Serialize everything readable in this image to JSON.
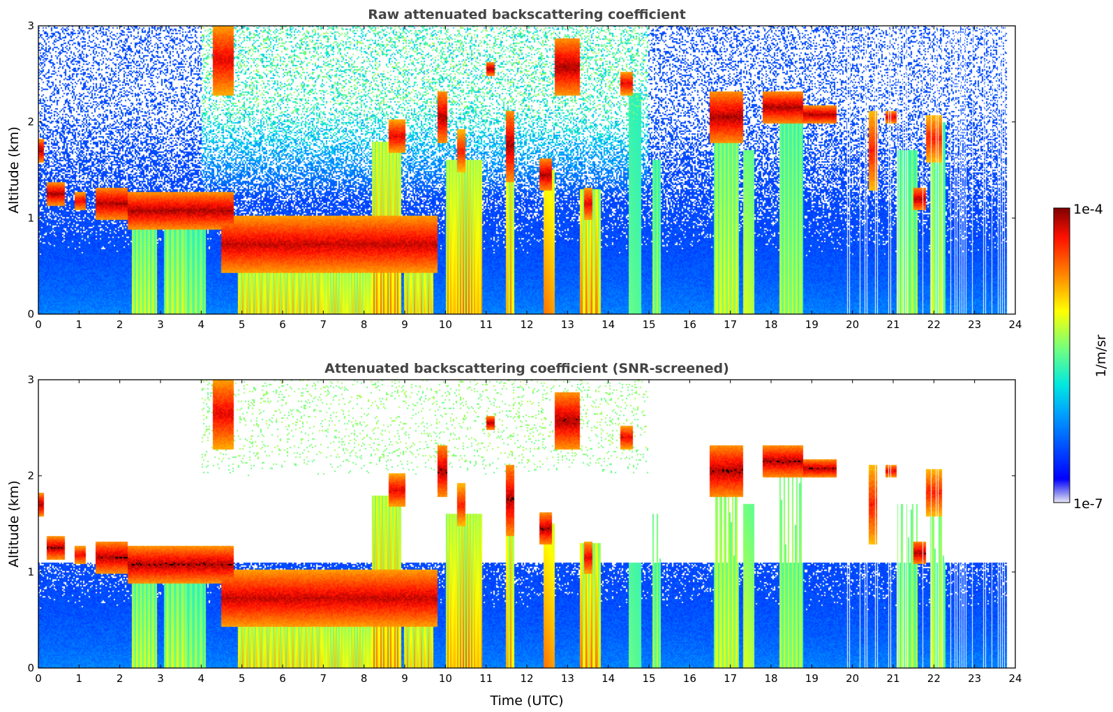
{
  "chart_data": [
    {
      "type": "heatmap",
      "title": "Raw attenuated backscattering coefficient",
      "xlabel": "",
      "ylabel": "Altitude (km)",
      "xlim": [
        0,
        24
      ],
      "ylim": [
        0,
        3
      ],
      "xticks": [
        "0",
        "1",
        "2",
        "3",
        "4",
        "5",
        "6",
        "7",
        "8",
        "9",
        "10",
        "11",
        "12",
        "13",
        "14",
        "15",
        "16",
        "17",
        "18",
        "19",
        "20",
        "21",
        "22",
        "23",
        "24"
      ],
      "yticks": [
        "0",
        "1",
        "2",
        "3"
      ],
      "screened": false
    },
    {
      "type": "heatmap",
      "title": "Attenuated backscattering coefficient (SNR-screened)",
      "xlabel": "Time (UTC)",
      "ylabel": "Altitude (km)",
      "xlim": [
        0,
        24
      ],
      "ylim": [
        0,
        3
      ],
      "xticks": [
        "0",
        "1",
        "2",
        "3",
        "4",
        "5",
        "6",
        "7",
        "8",
        "9",
        "10",
        "11",
        "12",
        "13",
        "14",
        "15",
        "16",
        "17",
        "18",
        "19",
        "20",
        "21",
        "22",
        "23",
        "24"
      ],
      "yticks": [
        "0",
        "1",
        "2",
        "3"
      ],
      "screened": true
    }
  ],
  "colorbar": {
    "label": "1/m/sr",
    "max_label": "1e-4",
    "min_label": "1e-7",
    "colormap": "jet",
    "scale": "log"
  },
  "cloud_features": [
    {
      "start": 0.0,
      "end": 0.15,
      "base": 1.6,
      "top": 1.8,
      "strength": 1.0
    },
    {
      "start": 0.2,
      "end": 0.65,
      "base": 1.15,
      "top": 1.35,
      "strength": 1.0
    },
    {
      "start": 0.9,
      "end": 1.15,
      "base": 1.1,
      "top": 1.25,
      "strength": 0.9
    },
    {
      "start": 1.4,
      "end": 2.2,
      "base": 1.0,
      "top": 1.3,
      "strength": 1.0
    },
    {
      "start": 2.2,
      "end": 4.8,
      "base": 0.9,
      "top": 1.25,
      "strength": 1.0
    },
    {
      "start": 4.5,
      "end": 9.8,
      "base": 0.45,
      "top": 1.0,
      "strength": 0.95
    },
    {
      "start": 4.3,
      "end": 4.8,
      "base": 2.3,
      "top": 3.0,
      "strength": 0.9
    },
    {
      "start": 8.6,
      "end": 9.0,
      "base": 1.7,
      "top": 2.0,
      "strength": 0.9
    },
    {
      "start": 9.8,
      "end": 10.05,
      "base": 1.8,
      "top": 2.3,
      "strength": 1.0
    },
    {
      "start": 10.3,
      "end": 10.5,
      "base": 1.5,
      "top": 1.9,
      "strength": 0.8
    },
    {
      "start": 11.0,
      "end": 11.2,
      "base": 2.5,
      "top": 2.6,
      "strength": 1.0
    },
    {
      "start": 11.5,
      "end": 11.7,
      "base": 1.4,
      "top": 2.1,
      "strength": 1.0
    },
    {
      "start": 12.3,
      "end": 12.6,
      "base": 1.3,
      "top": 1.6,
      "strength": 1.0
    },
    {
      "start": 12.7,
      "end": 13.3,
      "base": 2.3,
      "top": 2.85,
      "strength": 1.0
    },
    {
      "start": 13.4,
      "end": 13.6,
      "base": 1.0,
      "top": 1.3,
      "strength": 0.9
    },
    {
      "start": 14.3,
      "end": 14.6,
      "base": 2.3,
      "top": 2.5,
      "strength": 0.9
    },
    {
      "start": 16.5,
      "end": 17.3,
      "base": 1.8,
      "top": 2.3,
      "strength": 1.0
    },
    {
      "start": 17.8,
      "end": 18.8,
      "base": 2.0,
      "top": 2.3,
      "strength": 1.0
    },
    {
      "start": 18.8,
      "end": 19.6,
      "base": 2.0,
      "top": 2.15,
      "strength": 1.0
    },
    {
      "start": 20.4,
      "end": 20.6,
      "base": 1.3,
      "top": 2.1,
      "strength": 0.8
    },
    {
      "start": 20.8,
      "end": 21.1,
      "base": 2.0,
      "top": 2.1,
      "strength": 0.9
    },
    {
      "start": 21.5,
      "end": 21.8,
      "base": 1.1,
      "top": 1.3,
      "strength": 1.0
    },
    {
      "start": 21.8,
      "end": 22.2,
      "base": 1.6,
      "top": 2.05,
      "strength": 0.8
    }
  ],
  "precip_shafts": [
    {
      "start": 2.3,
      "end": 2.9,
      "top": 1.1,
      "strength": 0.6
    },
    {
      "start": 3.1,
      "end": 3.6,
      "top": 1.1,
      "strength": 0.6
    },
    {
      "start": 3.6,
      "end": 4.1,
      "top": 1.0,
      "strength": 0.5
    },
    {
      "start": 4.9,
      "end": 7.0,
      "top": 0.8,
      "strength": 0.8
    },
    {
      "start": 7.0,
      "end": 8.2,
      "top": 0.75,
      "strength": 0.75
    },
    {
      "start": 8.2,
      "end": 8.9,
      "top": 1.8,
      "strength": 0.95
    },
    {
      "start": 9.0,
      "end": 9.7,
      "top": 0.75,
      "strength": 0.85
    },
    {
      "start": 10.0,
      "end": 10.9,
      "top": 1.6,
      "strength": 0.95
    },
    {
      "start": 11.5,
      "end": 11.7,
      "top": 2.0,
      "strength": 0.9
    },
    {
      "start": 12.4,
      "end": 12.7,
      "top": 1.5,
      "strength": 0.9
    },
    {
      "start": 13.3,
      "end": 13.8,
      "top": 1.3,
      "strength": 0.95
    },
    {
      "start": 14.5,
      "end": 14.8,
      "top": 2.3,
      "strength": 0.55
    },
    {
      "start": 15.1,
      "end": 15.3,
      "top": 1.6,
      "strength": 0.5
    },
    {
      "start": 16.6,
      "end": 17.2,
      "top": 2.0,
      "strength": 0.65
    },
    {
      "start": 17.3,
      "end": 17.6,
      "top": 1.7,
      "strength": 0.55
    },
    {
      "start": 18.2,
      "end": 18.8,
      "top": 2.1,
      "strength": 0.55
    },
    {
      "start": 21.1,
      "end": 21.6,
      "top": 1.7,
      "strength": 0.55
    },
    {
      "start": 21.9,
      "end": 22.3,
      "top": 2.0,
      "strength": 0.55
    }
  ]
}
